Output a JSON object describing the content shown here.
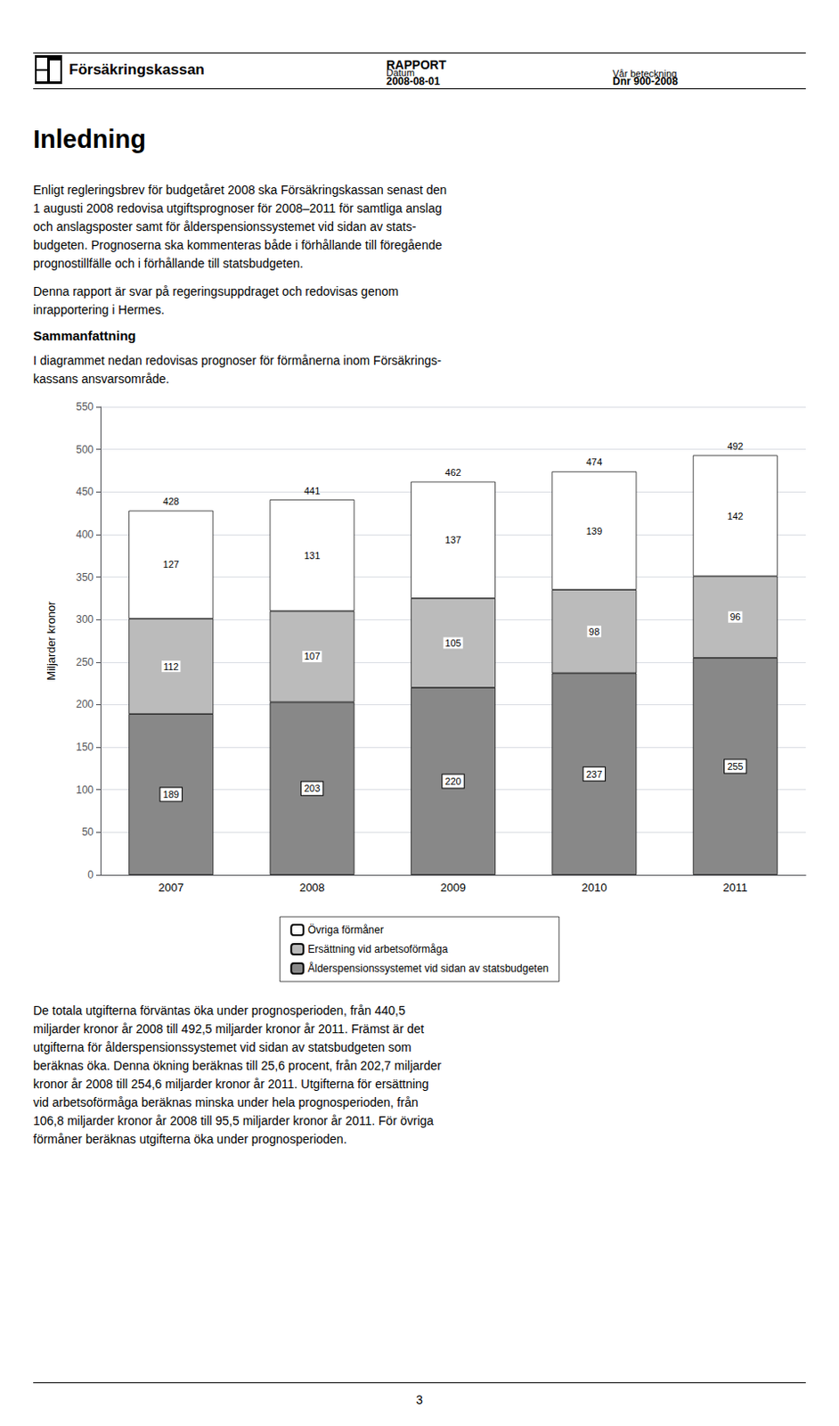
{
  "document": {
    "logo_text": "Försäkringskassan",
    "report": "RAPPORT",
    "date_label": "Datum",
    "date": "2008-08-01",
    "reference_label": "Vår beteckning",
    "reference": "Dnr 900-2008",
    "title": "Inledning",
    "body_text_1": "Enligt regleringsbrev för budgetåret 2008 ska Försäkringskassan senast den\n1 augusti 2008 redovisa utgiftsprognoser för 2008–2011 för samtliga anslag\noch anslagsposter samt för ålderspensionssystemet vid sidan av stats-\nbudgeten. Prognoserna ska kommenteras både i förhållande till föregående\nprognostillfälle och i förhållande till statsbudgeten.",
    "body_text_2": "Denna rapport är svar på regeringsuppdraget och redovisas genom\ninrapportering i Hermes.",
    "subtitle": "Sammanfattning",
    "body_text_3": "I diagrammet nedan redovisas prognoser för förmånerna inom Försäkrings-\nkassans ansvarsområde.",
    "body_text_4": "De totala utgifterna förväntas öka under prognosperioden, från 440,5\nmiljarder kronor år 2008 till 492,5 miljarder kronor år 2011. Främst är det\nutgifterna för ålderspensionssystemet vid sidan av statsbudgeten som\nberäknas öka. Denna ökning beräknas till 25,6 procent, från 202,7 miljarder\nkronor år 2008 till 254,6 miljarder kronor år 2011. Utgifterna för ersättning\nvid arbetsoförmåga beräknas minska under hela prognosperioden, från\n106,8 miljarder kronor år 2008 till 95,5 miljarder kronor år 2011. För övriga\nförmåner beräknas utgifterna öka under prognosperioden.",
    "page_number": "3"
  },
  "chart_data": {
    "type": "bar",
    "stacked": true,
    "categories": [
      "2007",
      "2008",
      "2009",
      "2010",
      "2011"
    ],
    "series": [
      {
        "name": "Ålderspensionssystemet vid sidan av statsbudgeten",
        "color": "#888888",
        "values": [
          189,
          203,
          220,
          237,
          255
        ]
      },
      {
        "name": "Ersättning vid arbetsoförmåga",
        "color": "#bbbbbb",
        "values": [
          112,
          107,
          105,
          98,
          96
        ]
      },
      {
        "name": "Övriga förmåner",
        "color": "#ffffff",
        "values": [
          127,
          131,
          137,
          139,
          142
        ]
      }
    ],
    "totals": [
      428,
      441,
      462,
      474,
      492
    ],
    "ylabel": "Miljarder kronor",
    "ylim": [
      0,
      550
    ],
    "yticks": [
      0,
      50,
      100,
      150,
      200,
      250,
      300,
      350,
      400,
      450,
      500,
      550
    ],
    "grid": true,
    "legend": "bottom",
    "data_labels": true
  }
}
